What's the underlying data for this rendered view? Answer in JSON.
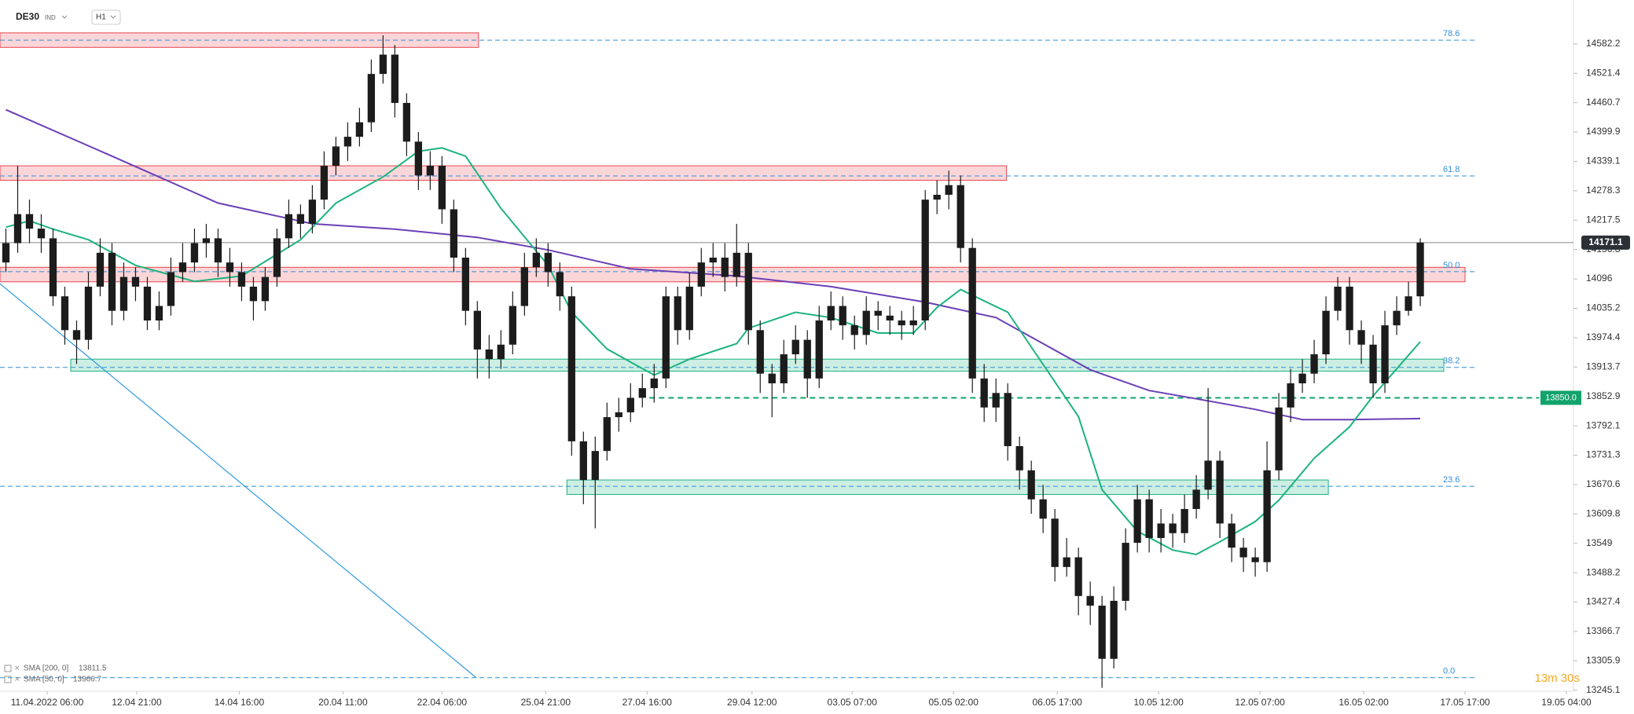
{
  "chart_data": {
    "type": "candlestick",
    "symbol": "DE30",
    "market": "IND",
    "interval": "H1",
    "up_color": "#1c1c1c",
    "down_color": "#1c1c1c",
    "open": [
      14130,
      14170,
      14230,
      14200,
      14180,
      14060,
      13990,
      13970,
      14080,
      14150,
      14030,
      14100,
      14080,
      14010,
      14040,
      14110,
      14130,
      14170,
      14180,
      14130,
      14110,
      14080,
      14050,
      14100,
      14180,
      14230,
      14210,
      14260,
      14330,
      14370,
      14390,
      14420,
      14520,
      14560,
      14460,
      14380,
      14310,
      14330,
      14240,
      14140,
      14030,
      13950,
      13930,
      13960,
      14040,
      14120,
      14150,
      14110,
      14060,
      13760,
      13680,
      13740,
      13810,
      13820,
      13850,
      13870,
      13890,
      14060,
      13990,
      14080,
      14130,
      14140,
      14100,
      14150,
      13990,
      13900,
      13880,
      13940,
      13970,
      13890,
      14010,
      14040,
      14000,
      13980,
      14030,
      14020,
      14010,
      14000,
      14010,
      14260,
      14270,
      14290,
      14160,
      13890,
      13830,
      13860,
      13750,
      13700,
      13640,
      13600,
      13500,
      13520,
      13440,
      13420,
      13310,
      13430,
      13550,
      13640,
      13560,
      13590,
      13570,
      13620,
      13660,
      13720,
      13590,
      13540,
      13520,
      13510,
      13700,
      13830,
      13880,
      13900,
      13940,
      14030,
      14080,
      13990,
      13960,
      13880,
      14000,
      14030,
      14060
    ],
    "high": [
      14200,
      14330,
      14260,
      14230,
      14200,
      14080,
      14010,
      14110,
      14180,
      14170,
      14130,
      14120,
      14100,
      14070,
      14140,
      14170,
      14200,
      14210,
      14200,
      14160,
      14130,
      14100,
      14120,
      14200,
      14260,
      14250,
      14290,
      14360,
      14390,
      14420,
      14450,
      14550,
      14600,
      14580,
      14480,
      14400,
      14360,
      14350,
      14260,
      14160,
      14050,
      13980,
      13990,
      14070,
      14150,
      14180,
      14170,
      14130,
      14080,
      13780,
      13770,
      13840,
      13850,
      13880,
      13900,
      13920,
      14080,
      14080,
      14110,
      14160,
      14170,
      14170,
      14210,
      14170,
      14010,
      13920,
      13970,
      14000,
      13990,
      14040,
      14070,
      14060,
      14020,
      14060,
      14050,
      14040,
      14030,
      14040,
      14280,
      14300,
      14320,
      14310,
      14180,
      13920,
      13890,
      13880,
      13770,
      13720,
      13670,
      13620,
      13560,
      13540,
      13470,
      13440,
      13460,
      13580,
      13670,
      13660,
      13620,
      13610,
      13650,
      13690,
      13870,
      13740,
      13610,
      13560,
      13540,
      13760,
      13860,
      13910,
      13930,
      13970,
      14060,
      14100,
      14100,
      14010,
      13980,
      14030,
      14060,
      14090,
      14180
    ],
    "low": [
      14110,
      14150,
      14170,
      14150,
      14040,
      13960,
      13920,
      13950,
      14060,
      14000,
      14010,
      14050,
      13990,
      13990,
      14020,
      14090,
      14110,
      14140,
      14100,
      14080,
      14050,
      14010,
      14030,
      14080,
      14160,
      14180,
      14190,
      14240,
      14310,
      14340,
      14370,
      14400,
      14500,
      14430,
      14350,
      14280,
      14280,
      14210,
      14110,
      14000,
      13890,
      13890,
      13910,
      13940,
      14020,
      14100,
      14080,
      14030,
      13730,
      13630,
      13580,
      13720,
      13780,
      13800,
      13830,
      13840,
      13870,
      13960,
      13970,
      14060,
      14100,
      14070,
      14080,
      13960,
      13860,
      13810,
      13860,
      13920,
      13850,
      13870,
      13990,
      13970,
      13950,
      13960,
      13990,
      13980,
      13970,
      13980,
      13990,
      14230,
      14240,
      14130,
      13860,
      13800,
      13800,
      13720,
      13660,
      13610,
      13570,
      13470,
      13480,
      13400,
      13380,
      13250,
      13290,
      13410,
      13530,
      13530,
      13530,
      13540,
      13550,
      13600,
      13640,
      13560,
      13510,
      13490,
      13480,
      13490,
      13680,
      13800,
      13860,
      13880,
      13920,
      14010,
      13960,
      13920,
      13850,
      13860,
      13980,
      14020,
      14040
    ],
    "close": [
      14170,
      14230,
      14200,
      14180,
      14060,
      13990,
      13970,
      14080,
      14150,
      14030,
      14100,
      14080,
      14010,
      14040,
      14110,
      14130,
      14170,
      14180,
      14130,
      14110,
      14080,
      14050,
      14100,
      14180,
      14230,
      14210,
      14260,
      14330,
      14370,
      14390,
      14420,
      14520,
      14560,
      14460,
      14380,
      14310,
      14330,
      14240,
      14140,
      14030,
      13950,
      13930,
      13960,
      14040,
      14120,
      14150,
      14110,
      14060,
      13760,
      13680,
      13740,
      13810,
      13820,
      13850,
      13870,
      13890,
      14060,
      13990,
      14080,
      14130,
      14140,
      14100,
      14150,
      13990,
      13900,
      13880,
      13940,
      13970,
      13890,
      14010,
      14040,
      14000,
      13980,
      14030,
      14020,
      14010,
      14000,
      14010,
      14260,
      14270,
      14290,
      14160,
      13890,
      13830,
      13860,
      13750,
      13700,
      13640,
      13600,
      13500,
      13520,
      13440,
      13420,
      13310,
      13430,
      13550,
      13640,
      13560,
      13590,
      13570,
      13620,
      13660,
      13720,
      13590,
      13540,
      13520,
      13510,
      13700,
      13830,
      13880,
      13900,
      13940,
      14030,
      14080,
      13990,
      13960,
      13880,
      14000,
      14030,
      14060,
      14171.1
    ],
    "xlim": [
      -0.5,
      133
    ],
    "ylim": [
      13243,
      14673
    ],
    "yticks": [
      14582.2,
      14521.4,
      14460.7,
      14399.9,
      14339.1,
      14278.3,
      14217.5,
      14156.8,
      14096.0,
      14035.2,
      13974.4,
      13913.7,
      13852.9,
      13792.1,
      13731.3,
      13670.6,
      13609.8,
      13549.0,
      13488.2,
      13427.4,
      13366.7,
      13305.9,
      13245.1
    ],
    "xticks": [
      {
        "value": 3.5,
        "label": "11.04.2022 06:00"
      },
      {
        "value": 11.1,
        "label": "12.04 21:00"
      },
      {
        "value": 19.8,
        "label": "14.04 16:00"
      },
      {
        "value": 28.6,
        "label": "20.04 11:00"
      },
      {
        "value": 37,
        "label": "22.04 06:00"
      },
      {
        "value": 45.8,
        "label": "25.04 21:00"
      },
      {
        "value": 54.4,
        "label": "27.04 16:00"
      },
      {
        "value": 63.3,
        "label": "29.04 12:00"
      },
      {
        "value": 71.8,
        "label": "03.05 07:00"
      },
      {
        "value": 80.4,
        "label": "05.05 02:00"
      },
      {
        "value": 89.2,
        "label": "06.05 17:00"
      },
      {
        "value": 97.8,
        "label": "10.05 12:00"
      },
      {
        "value": 106.4,
        "label": "12.05 07:00"
      },
      {
        "value": 115.2,
        "label": "16.05 02:00"
      },
      {
        "value": 123.8,
        "label": "17.05 17:00"
      },
      {
        "value": 132.4,
        "label": "19.05 04:00"
      }
    ],
    "series": [
      {
        "name": "SMA [200, 0]",
        "last_value": 13811.5,
        "color": "#6b3fb6",
        "x": [
          0,
          9,
          18,
          26,
          33,
          40,
          46,
          53,
          62,
          70,
          78,
          84,
          88,
          92,
          97,
          101,
          106,
          110,
          114,
          120
        ],
        "values": [
          14446,
          14350,
          14253,
          14210,
          14199,
          14182,
          14156,
          14117,
          14102,
          14080,
          14048,
          14016,
          13962,
          13908,
          13865,
          13848,
          13826,
          13805,
          13805,
          13807
        ]
      },
      {
        "name": "SMA [50, 0]",
        "last_value": 13966.7,
        "color": "#1db37f",
        "x": [
          0,
          2,
          4,
          7,
          11,
          16,
          20,
          25,
          28,
          32,
          35,
          37,
          39,
          42,
          46,
          48,
          51,
          55,
          58,
          62,
          63,
          67,
          70,
          74,
          77,
          79,
          81,
          85,
          88,
          91,
          93,
          96,
          99,
          101,
          103,
          106,
          108,
          111,
          114,
          116,
          120
        ],
        "values": [
          14203,
          14216,
          14199,
          14177,
          14124,
          14091,
          14102,
          14177,
          14253,
          14307,
          14360,
          14367,
          14350,
          14242,
          14124,
          14027,
          13951,
          13897,
          13930,
          13962,
          13994,
          14027,
          14016,
          13984,
          13984,
          14037,
          14074,
          14027,
          13919,
          13811,
          13660,
          13574,
          13535,
          13526,
          13552,
          13594,
          13638,
          13725,
          13790,
          13854,
          13966
        ]
      }
    ],
    "zones": [
      {
        "low": 14575,
        "high": 14605,
        "from": -0.5,
        "to": 40.1,
        "color": "#e8454f"
      },
      {
        "low": 14300,
        "high": 14330,
        "from": -0.5,
        "to": 84.9,
        "color": "#e8454f"
      },
      {
        "low": 14090,
        "high": 14120,
        "from": -0.5,
        "to": 123.8,
        "color": "#e8454f"
      },
      {
        "low": 13905,
        "high": 13930,
        "from": 5.5,
        "to": 122,
        "color": "#1db37f"
      },
      {
        "low": 13650,
        "high": 13680,
        "from": 47.6,
        "to": 112.2,
        "color": "#1db37f"
      }
    ],
    "fib_levels": [
      {
        "level": "78.6",
        "value": 14590
      },
      {
        "level": "61.8",
        "value": 14309
      },
      {
        "level": "50.0",
        "value": 14111
      },
      {
        "level": "38.2",
        "value": 13913
      },
      {
        "level": "23.6",
        "value": 13667
      },
      {
        "level": "0.0",
        "value": 13271
      }
    ],
    "fib_color": "#2f8fd8",
    "trendline": {
      "x": [
        -0.5,
        39.9
      ],
      "values": [
        14086,
        13271
      ],
      "color": "#2f9be0"
    },
    "last_price": 14171.1,
    "alert_line": {
      "value": 13850,
      "label": "13850.0",
      "from": 54.6,
      "color": "#12a36b"
    },
    "countdown": "13m 30s"
  }
}
